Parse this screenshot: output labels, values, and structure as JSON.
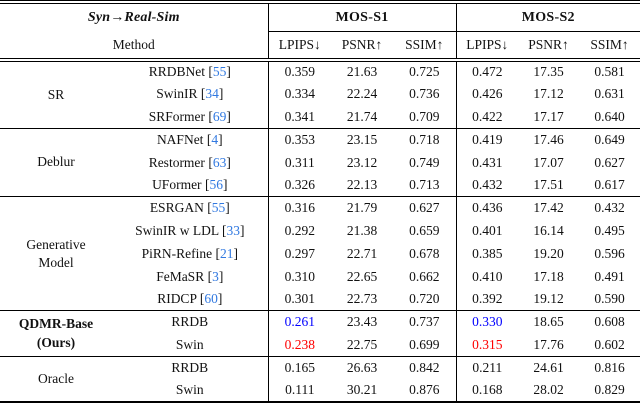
{
  "table": {
    "title": "Syn→Real-Sim",
    "method_header": "Method",
    "section_headers": [
      "MOS-S1",
      "MOS-S2"
    ],
    "metric_headers": [
      "LPIPS↓",
      "PSNR↑",
      "SSIM↑",
      "LPIPS↓",
      "PSNR↑",
      "SSIM↑"
    ],
    "cite_brackets": [
      "[",
      "]"
    ],
    "colors": {
      "citation": "#3179e1",
      "best": "#ff0000",
      "second_best": "#0000ff"
    },
    "groups": [
      {
        "name": "SR",
        "bold": false,
        "rows": [
          {
            "method": "RRDBNet",
            "cite": "55",
            "values": [
              {
                "t": "0.359"
              },
              {
                "t": "21.63"
              },
              {
                "t": "0.725"
              },
              {
                "t": "0.472"
              },
              {
                "t": "17.35"
              },
              {
                "t": "0.581"
              }
            ]
          },
          {
            "method": "SwinIR",
            "cite": "34",
            "values": [
              {
                "t": "0.334"
              },
              {
                "t": "22.24"
              },
              {
                "t": "0.736"
              },
              {
                "t": "0.426"
              },
              {
                "t": "17.12"
              },
              {
                "t": "0.631"
              }
            ]
          },
          {
            "method": "SRFormer",
            "cite": "69",
            "values": [
              {
                "t": "0.341"
              },
              {
                "t": "21.74"
              },
              {
                "t": "0.709"
              },
              {
                "t": "0.422"
              },
              {
                "t": "17.17"
              },
              {
                "t": "0.640"
              }
            ]
          }
        ]
      },
      {
        "name": "Deblur",
        "bold": false,
        "rows": [
          {
            "method": "NAFNet",
            "cite": "4",
            "values": [
              {
                "t": "0.353"
              },
              {
                "t": "23.15"
              },
              {
                "t": "0.718"
              },
              {
                "t": "0.419"
              },
              {
                "t": "17.46"
              },
              {
                "t": "0.649"
              }
            ]
          },
          {
            "method": "Restormer",
            "cite": "63",
            "values": [
              {
                "t": "0.311"
              },
              {
                "t": "23.12"
              },
              {
                "t": "0.749"
              },
              {
                "t": "0.431"
              },
              {
                "t": "17.07"
              },
              {
                "t": "0.627"
              }
            ]
          },
          {
            "method": "UFormer",
            "cite": "56",
            "values": [
              {
                "t": "0.326"
              },
              {
                "t": "22.13"
              },
              {
                "t": "0.713"
              },
              {
                "t": "0.432"
              },
              {
                "t": "17.51"
              },
              {
                "t": "0.617"
              }
            ]
          }
        ]
      },
      {
        "name": "Generative\nModel",
        "bold": false,
        "rows": [
          {
            "method": "ESRGAN",
            "cite": "55",
            "values": [
              {
                "t": "0.316"
              },
              {
                "t": "21.79"
              },
              {
                "t": "0.627"
              },
              {
                "t": "0.436"
              },
              {
                "t": "17.42"
              },
              {
                "t": "0.432"
              }
            ]
          },
          {
            "method": "SwinIR w LDL",
            "cite": "33",
            "values": [
              {
                "t": "0.292"
              },
              {
                "t": "21.38"
              },
              {
                "t": "0.659"
              },
              {
                "t": "0.401"
              },
              {
                "t": "16.14"
              },
              {
                "t": "0.495"
              }
            ]
          },
          {
            "method": "PiRN-Refine",
            "cite": "21",
            "values": [
              {
                "t": "0.297"
              },
              {
                "t": "22.71"
              },
              {
                "t": "0.678"
              },
              {
                "t": "0.385"
              },
              {
                "t": "19.20"
              },
              {
                "t": "0.596"
              }
            ]
          },
          {
            "method": "FeMaSR",
            "cite": "3",
            "values": [
              {
                "t": "0.310"
              },
              {
                "t": "22.65"
              },
              {
                "t": "0.662"
              },
              {
                "t": "0.410"
              },
              {
                "t": "17.18"
              },
              {
                "t": "0.491"
              }
            ]
          },
          {
            "method": "RIDCP",
            "cite": "60",
            "values": [
              {
                "t": "0.301"
              },
              {
                "t": "22.73"
              },
              {
                "t": "0.720"
              },
              {
                "t": "0.392"
              },
              {
                "t": "19.12"
              },
              {
                "t": "0.590"
              }
            ]
          }
        ]
      },
      {
        "name": "QDMR-Base\n(Ours)",
        "bold": true,
        "rows": [
          {
            "method": "RRDB",
            "cite": null,
            "values": [
              {
                "t": "0.261",
                "c": "second_best"
              },
              {
                "t": "23.43"
              },
              {
                "t": "0.737"
              },
              {
                "t": "0.330",
                "c": "second_best"
              },
              {
                "t": "18.65"
              },
              {
                "t": "0.608"
              }
            ]
          },
          {
            "method": "Swin",
            "cite": null,
            "values": [
              {
                "t": "0.238",
                "c": "best"
              },
              {
                "t": "22.75"
              },
              {
                "t": "0.699"
              },
              {
                "t": "0.315",
                "c": "best"
              },
              {
                "t": "17.76"
              },
              {
                "t": "0.602"
              }
            ]
          }
        ]
      },
      {
        "name": "Oracle",
        "bold": false,
        "rows": [
          {
            "method": "RRDB",
            "cite": null,
            "values": [
              {
                "t": "0.165"
              },
              {
                "t": "26.63"
              },
              {
                "t": "0.842"
              },
              {
                "t": "0.211"
              },
              {
                "t": "24.61"
              },
              {
                "t": "0.816"
              }
            ]
          },
          {
            "method": "Swin",
            "cite": null,
            "values": [
              {
                "t": "0.111"
              },
              {
                "t": "30.21"
              },
              {
                "t": "0.876"
              },
              {
                "t": "0.168"
              },
              {
                "t": "28.02"
              },
              {
                "t": "0.829"
              }
            ]
          }
        ]
      }
    ]
  }
}
